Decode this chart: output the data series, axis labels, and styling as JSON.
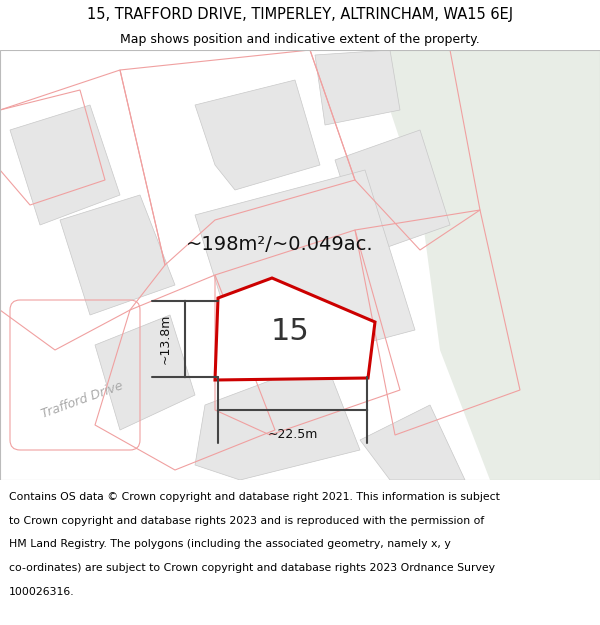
{
  "title": "15, TRAFFORD DRIVE, TIMPERLEY, ALTRINCHAM, WA15 6EJ",
  "subtitle": "Map shows position and indicative extent of the property.",
  "footer_lines": [
    "Contains OS data © Crown copyright and database right 2021. This information is subject",
    "to Crown copyright and database rights 2023 and is reproduced with the permission of",
    "HM Land Registry. The polygons (including the associated geometry, namely x, y",
    "co-ordinates) are subject to Crown copyright and database rights 2023 Ordnance Survey",
    "100026316."
  ],
  "area_label": "~198m²/~0.049ac.",
  "dim_h": "~13.8m",
  "dim_w": "~22.5m",
  "property_number": "15",
  "road_label": "Trafford Drive",
  "map_bg": "#ffffff",
  "green_color": "#e8ede6",
  "building_fill": "#e6e6e6",
  "building_edge": "#c8c8c8",
  "cadastral_color": "#f0a0a0",
  "property_stroke": "#cc0000",
  "dim_color": "#444444",
  "title_fontsize": 10.5,
  "subtitle_fontsize": 9,
  "footer_fontsize": 7.8,
  "area_fontsize": 14,
  "number_fontsize": 22,
  "road_fontsize": 9,
  "dim_fontsize": 9
}
